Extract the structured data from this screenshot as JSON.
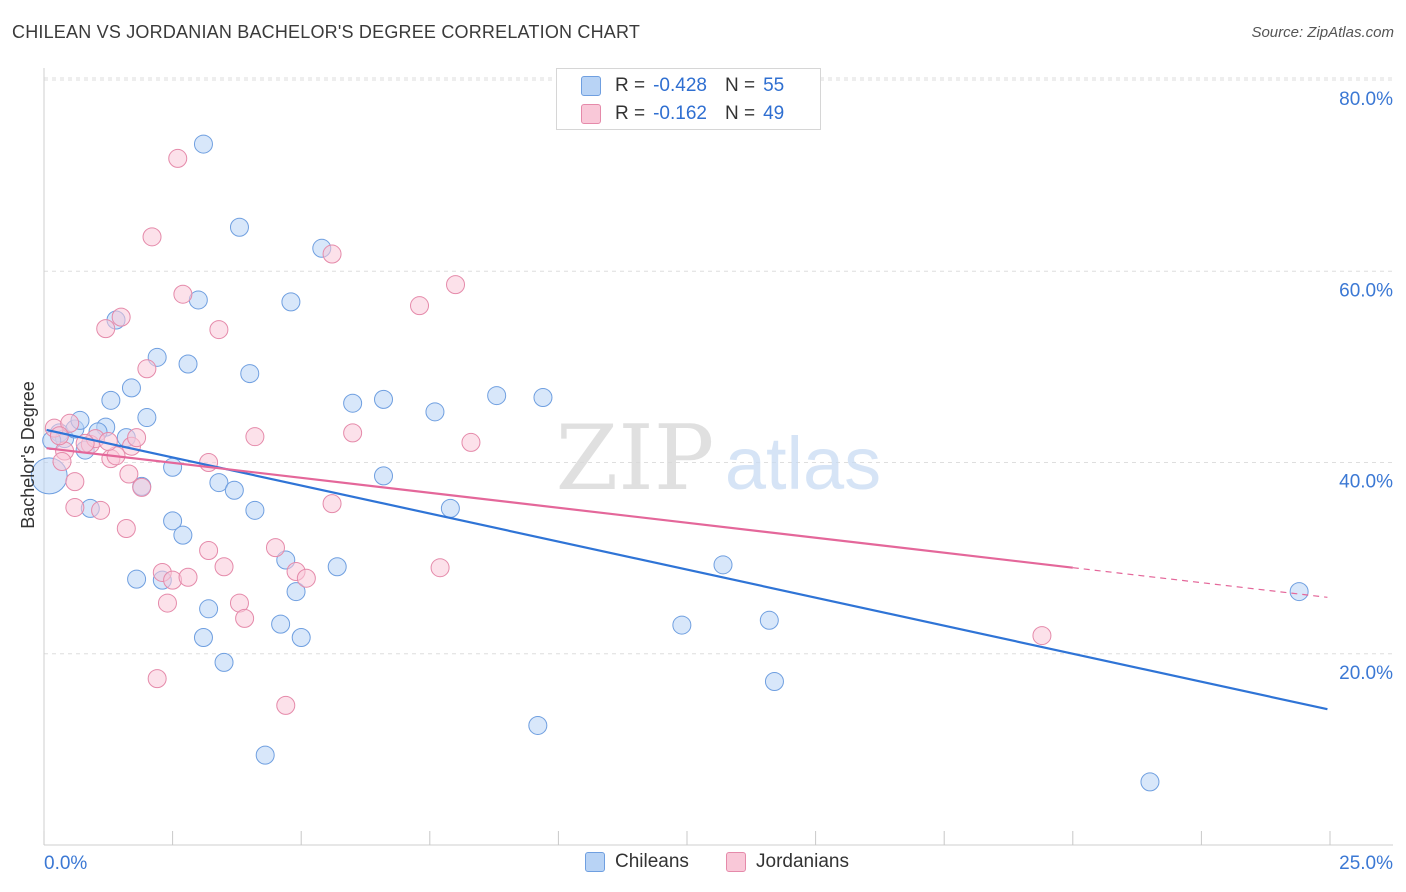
{
  "header": {
    "title": "CHILEAN VS JORDANIAN BACHELOR'S DEGREE CORRELATION CHART",
    "source": "Source: ZipAtlas.com"
  },
  "watermark": {
    "zip": "ZIP",
    "atlas": "atlas"
  },
  "legend_stats": [
    {
      "r_label": "R =",
      "r_value": "-0.428",
      "n_label": "N =",
      "n_value": "55",
      "color": "#b8d3f5",
      "border": "#6f9fe0"
    },
    {
      "r_label": "R =",
      "r_value": "-0.162",
      "n_label": "N =",
      "n_value": "49",
      "color": "#f9c8d8",
      "border": "#e58aaa"
    }
  ],
  "legend_bottom": [
    {
      "label": "Chileans",
      "color": "#b8d3f5",
      "border": "#6f9fe0"
    },
    {
      "label": "Jordanians",
      "color": "#f9c8d8",
      "border": "#e58aaa"
    }
  ],
  "chart_data": {
    "type": "scatter",
    "title": "CHILEAN VS JORDANIAN BACHELOR'S DEGREE CORRELATION CHART",
    "xlabel": "",
    "ylabel": "Bachelor's Degree",
    "xlim": [
      0,
      25
    ],
    "ylim": [
      0,
      80
    ],
    "x_tick_labels": [
      "0.0%",
      "25.0%"
    ],
    "y_ticks": [
      20,
      40,
      60,
      80
    ],
    "y_tick_labels": [
      "20.0%",
      "40.0%",
      "60.0%",
      "80.0%"
    ],
    "grid": true,
    "legend": "top-center",
    "series": [
      {
        "name": "Chileans",
        "color": "#6f9fe0",
        "fill": "#b8d3f5",
        "line_color": "#2f74d6",
        "trend": {
          "x0": 0.05,
          "y0": 43.4,
          "x1": 24.95,
          "y1": 14.2
        },
        "points": [
          [
            0.1,
            38.6
          ],
          [
            0.3,
            43.1
          ],
          [
            0.4,
            42.5
          ],
          [
            0.6,
            43.5
          ],
          [
            0.7,
            44.4
          ],
          [
            0.8,
            41.3
          ],
          [
            0.9,
            35.2
          ],
          [
            1.2,
            43.7
          ],
          [
            1.3,
            46.5
          ],
          [
            1.4,
            54.9
          ],
          [
            1.6,
            42.6
          ],
          [
            1.7,
            47.8
          ],
          [
            1.8,
            27.8
          ],
          [
            1.9,
            37.5
          ],
          [
            2.0,
            44.7
          ],
          [
            2.2,
            51.0
          ],
          [
            2.3,
            27.7
          ],
          [
            2.5,
            33.9
          ],
          [
            2.5,
            39.5
          ],
          [
            2.7,
            32.4
          ],
          [
            2.8,
            50.3
          ],
          [
            3.0,
            57.0
          ],
          [
            3.1,
            21.7
          ],
          [
            3.1,
            73.3
          ],
          [
            3.2,
            24.7
          ],
          [
            3.4,
            37.9
          ],
          [
            3.5,
            19.1
          ],
          [
            3.7,
            37.1
          ],
          [
            3.8,
            64.6
          ],
          [
            4.0,
            49.3
          ],
          [
            4.1,
            35.0
          ],
          [
            4.3,
            9.4
          ],
          [
            4.6,
            23.1
          ],
          [
            4.7,
            29.8
          ],
          [
            4.8,
            56.8
          ],
          [
            4.9,
            26.5
          ],
          [
            5.0,
            21.7
          ],
          [
            5.4,
            62.4
          ],
          [
            5.7,
            29.1
          ],
          [
            6.0,
            46.2
          ],
          [
            6.6,
            46.6
          ],
          [
            6.6,
            38.6
          ],
          [
            7.6,
            45.3
          ],
          [
            7.9,
            35.2
          ],
          [
            8.8,
            47.0
          ],
          [
            9.6,
            12.5
          ],
          [
            9.7,
            46.8
          ],
          [
            12.4,
            23.0
          ],
          [
            13.2,
            29.3
          ],
          [
            14.1,
            23.5
          ],
          [
            14.2,
            17.1
          ],
          [
            21.5,
            6.6
          ],
          [
            24.4,
            26.5
          ],
          [
            0.15,
            42.3
          ],
          [
            1.05,
            43.2
          ]
        ]
      },
      {
        "name": "Jordanians",
        "color": "#e58aaa",
        "fill": "#f9c8d8",
        "line_color": "#e4679a",
        "trend": {
          "x0": 0.05,
          "y0": 41.5,
          "x1": 20.0,
          "y1": 29.0,
          "dash_x1": 24.95,
          "dash_y1": 25.9
        },
        "points": [
          [
            0.2,
            43.6
          ],
          [
            0.4,
            41.2
          ],
          [
            0.5,
            44.1
          ],
          [
            0.6,
            38.0
          ],
          [
            0.6,
            35.3
          ],
          [
            0.9,
            41.9
          ],
          [
            1.0,
            42.5
          ],
          [
            1.1,
            35.0
          ],
          [
            1.2,
            54.0
          ],
          [
            1.3,
            40.4
          ],
          [
            1.4,
            40.7
          ],
          [
            1.5,
            55.2
          ],
          [
            1.6,
            33.1
          ],
          [
            1.7,
            41.7
          ],
          [
            1.8,
            42.6
          ],
          [
            1.9,
            37.4
          ],
          [
            2.0,
            49.8
          ],
          [
            2.1,
            63.6
          ],
          [
            2.2,
            17.4
          ],
          [
            2.3,
            28.5
          ],
          [
            2.4,
            25.3
          ],
          [
            2.5,
            27.7
          ],
          [
            2.6,
            71.8
          ],
          [
            2.7,
            57.6
          ],
          [
            2.8,
            28.0
          ],
          [
            3.2,
            30.8
          ],
          [
            3.2,
            40.0
          ],
          [
            3.5,
            29.1
          ],
          [
            3.4,
            53.9
          ],
          [
            3.8,
            25.3
          ],
          [
            3.9,
            23.7
          ],
          [
            4.1,
            42.7
          ],
          [
            4.5,
            31.1
          ],
          [
            4.7,
            14.6
          ],
          [
            4.9,
            28.6
          ],
          [
            5.1,
            27.9
          ],
          [
            5.6,
            61.8
          ],
          [
            5.6,
            35.7
          ],
          [
            6.0,
            43.1
          ],
          [
            7.3,
            56.4
          ],
          [
            7.7,
            29.0
          ],
          [
            8.0,
            58.6
          ],
          [
            8.3,
            42.1
          ],
          [
            19.4,
            21.9
          ],
          [
            0.3,
            42.8
          ],
          [
            1.25,
            42.2
          ],
          [
            0.35,
            40.1
          ],
          [
            0.8,
            42.0
          ],
          [
            1.65,
            38.8
          ]
        ]
      }
    ]
  }
}
